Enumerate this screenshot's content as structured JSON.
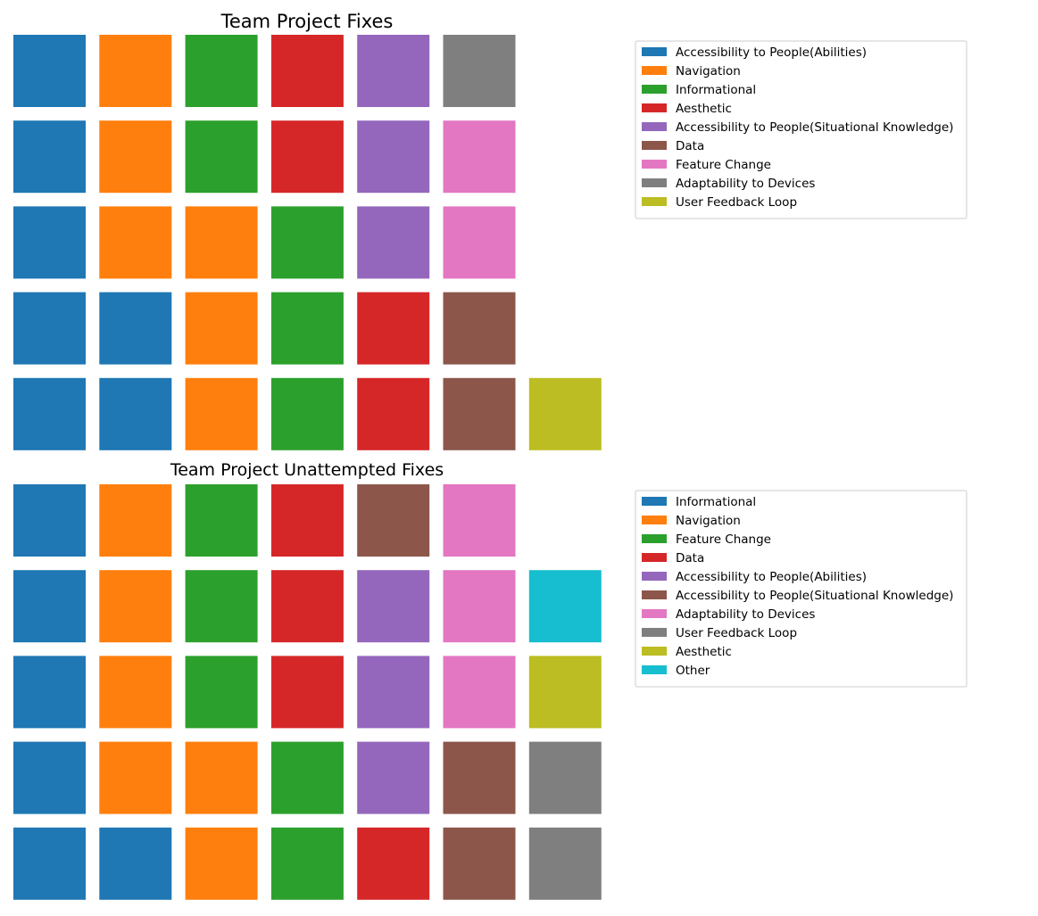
{
  "colors": {
    "blue": "#1f77b4",
    "orange": "#ff7f0e",
    "green": "#2ca02c",
    "red": "#d62728",
    "purple": "#9467bd",
    "brown": "#8c564b",
    "pink": "#e377c2",
    "gray": "#7f7f7f",
    "olive": "#bcbd22",
    "cyan": "#17becf"
  },
  "chart_data": [
    {
      "type": "waffle",
      "title": "Team Project Fixes",
      "legend_position": "right",
      "grid": false,
      "rows": 5,
      "fill_order": "column-major, bottom-to-top",
      "categories": [
        "Accessibility to People(Abilities)",
        "Navigation",
        "Informational",
        "Aesthetic",
        "Accessibility to People(Situational Knowledge)",
        "Data",
        "Feature Change",
        "Adaptability to Devices",
        "User Feedback Loop"
      ],
      "values": [
        7,
        6,
        5,
        4,
        3,
        2,
        2,
        1,
        1
      ],
      "category_colors": [
        "#1f77b4",
        "#ff7f0e",
        "#2ca02c",
        "#d62728",
        "#9467bd",
        "#8c564b",
        "#e377c2",
        "#7f7f7f",
        "#bcbd22"
      ]
    },
    {
      "type": "waffle",
      "title": "Team Project Unattempted Fixes",
      "legend_position": "right",
      "grid": false,
      "rows": 5,
      "fill_order": "column-major, bottom-to-top",
      "categories": [
        "Informational",
        "Navigation",
        "Feature Change",
        "Data",
        "Accessibility to People(Abilities)",
        "Accessibility to People(Situational Knowledge)",
        "Adaptability to Devices",
        "User Feedback Loop",
        "Aesthetic",
        "Other"
      ],
      "values": [
        6,
        6,
        5,
        4,
        3,
        3,
        3,
        2,
        1,
        1
      ],
      "category_colors": [
        "#1f77b4",
        "#ff7f0e",
        "#2ca02c",
        "#d62728",
        "#9467bd",
        "#8c564b",
        "#e377c2",
        "#7f7f7f",
        "#bcbd22",
        "#17becf"
      ]
    }
  ]
}
